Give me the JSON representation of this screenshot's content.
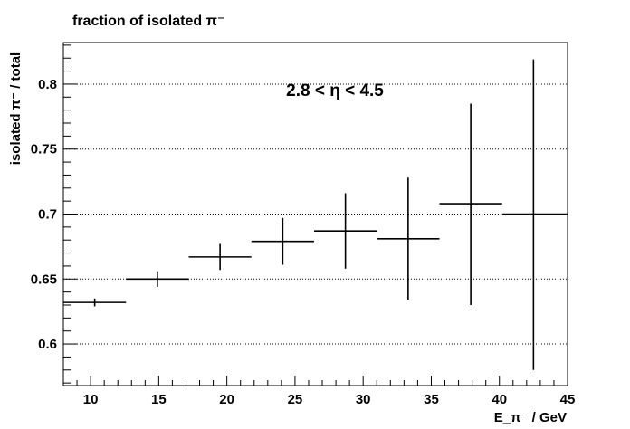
{
  "chart_data": {
    "type": "scatter",
    "title": "fraction of isolated π⁻",
    "xlabel": "E_π⁻ / GeV",
    "ylabel": "isolated π⁻ / total",
    "annotation": "2.8 < η < 4.5",
    "xlim": [
      8,
      45
    ],
    "ylim": [
      0.568,
      0.832
    ],
    "x_ticks": [
      "10",
      "15",
      "20",
      "25",
      "30",
      "35",
      "40",
      "45"
    ],
    "y_ticks": [
      "0.6",
      "0.65",
      "0.7",
      "0.75",
      "0.8"
    ],
    "grid_y": true,
    "grid_x": false,
    "series": [
      {
        "points": [
          {
            "x": 10.3,
            "xlo": 8.0,
            "xhi": 12.6,
            "y": 0.632,
            "ylo": 0.629,
            "yhi": 0.635
          },
          {
            "x": 14.9,
            "xlo": 12.6,
            "xhi": 17.2,
            "y": 0.65,
            "ylo": 0.644,
            "yhi": 0.656
          },
          {
            "x": 19.5,
            "xlo": 17.2,
            "xhi": 21.8,
            "y": 0.667,
            "ylo": 0.657,
            "yhi": 0.677
          },
          {
            "x": 24.1,
            "xlo": 21.8,
            "xhi": 26.4,
            "y": 0.679,
            "ylo": 0.661,
            "yhi": 0.697
          },
          {
            "x": 28.7,
            "xlo": 26.4,
            "xhi": 31.0,
            "y": 0.687,
            "ylo": 0.658,
            "yhi": 0.716
          },
          {
            "x": 33.3,
            "xlo": 31.0,
            "xhi": 35.6,
            "y": 0.681,
            "ylo": 0.634,
            "yhi": 0.728
          },
          {
            "x": 37.9,
            "xlo": 35.6,
            "xhi": 40.2,
            "y": 0.708,
            "ylo": 0.63,
            "yhi": 0.785
          },
          {
            "x": 42.5,
            "xlo": 40.2,
            "xhi": 45.0,
            "y": 0.7,
            "ylo": 0.58,
            "yhi": 0.819
          }
        ]
      }
    ]
  }
}
